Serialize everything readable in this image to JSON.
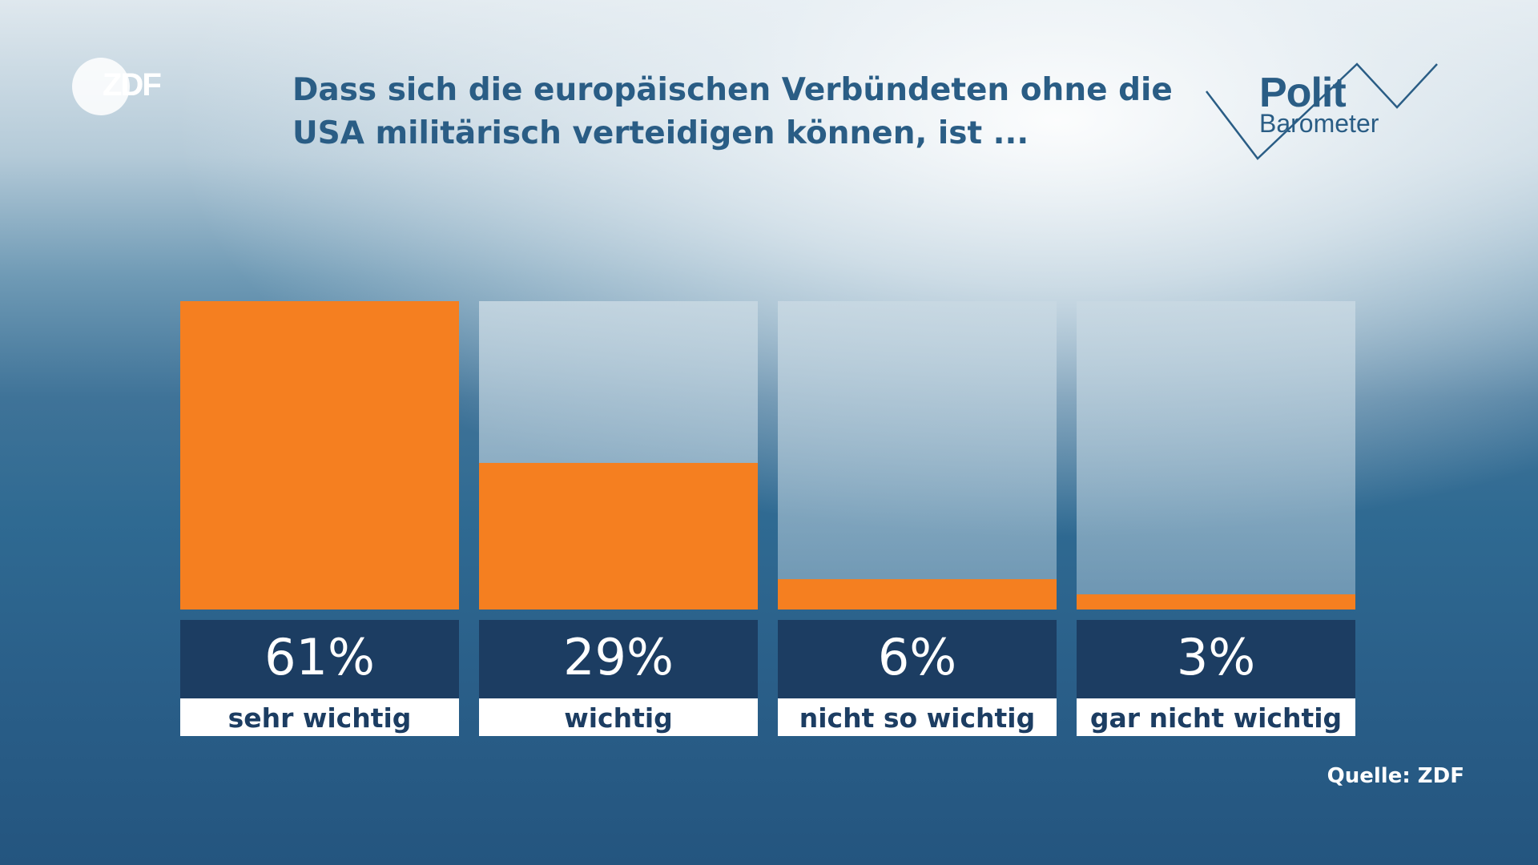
{
  "branding": {
    "channel_logo_text": "ZDF",
    "series_logo_line1": "Polit",
    "series_logo_line2": "Barometer"
  },
  "title": "Dass sich die europäischen Verbündeten ohne die USA militärisch verteidigen können, ist ...",
  "source": "Quelle: ZDF",
  "colors": {
    "bar_fill": "#f57f20",
    "bar_track": "#c7d7e1",
    "value_box": "#1c3d62",
    "label_box": "#ffffff",
    "label_text": "#1c3d62",
    "title_text": "#2a5d85"
  },
  "chart_data": {
    "type": "bar",
    "categories": [
      "sehr wichtig",
      "wichtig",
      "nicht so wichtig",
      "gar nicht wichtig"
    ],
    "values": [
      61,
      29,
      6,
      3
    ],
    "value_labels": [
      "61%",
      "29%",
      "6%",
      "3%"
    ],
    "unit": "%",
    "ylim": [
      0,
      61
    ],
    "grid": false,
    "legend": "none",
    "title": "Dass sich die europäischen Verbündeten ohne die USA militärisch verteidigen können, ist ..."
  }
}
